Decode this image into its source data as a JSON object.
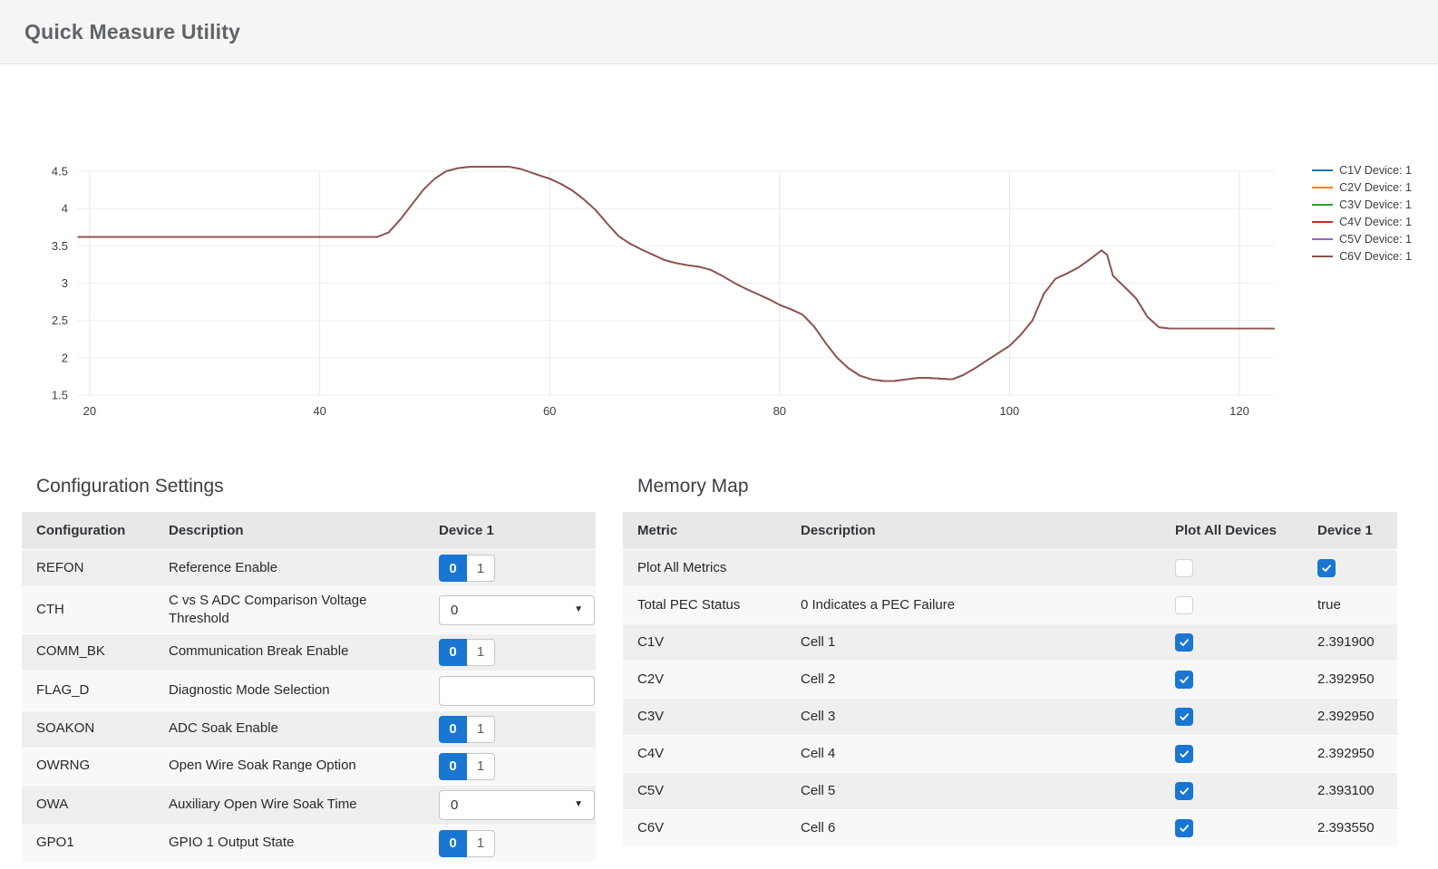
{
  "app": {
    "title": "Quick Measure Utility"
  },
  "colors": {
    "accent": "#1976d2",
    "header_bg": "#f5f5f5",
    "row_odd": "#efefef",
    "row_even": "#f8f8f8",
    "table_header_bg": "#e8e8e8"
  },
  "chart_data": {
    "type": "line",
    "title": "",
    "xlabel": "",
    "ylabel": "",
    "grid": true,
    "legend_position": "right",
    "x_ticks": [
      20,
      40,
      60,
      80,
      100,
      120
    ],
    "y_ticks": [
      1.5,
      2,
      2.5,
      3,
      3.5,
      4,
      4.5
    ],
    "x_range": [
      18.9,
      123.0
    ],
    "y_range": [
      1.5,
      4.5
    ],
    "all_series_identical": true,
    "note": "All six cell-voltage traces overlap exactly; only the last-drawn (C6V, brown) is visible.",
    "x": [
      19,
      45,
      46,
      47,
      48,
      49,
      50,
      51,
      52,
      53,
      56.5,
      57.5,
      59,
      60,
      61,
      62,
      63,
      64,
      65,
      66,
      67,
      68,
      69,
      70,
      71,
      72,
      73,
      74,
      75,
      76,
      77,
      78,
      79,
      80,
      81,
      82,
      83,
      84,
      85,
      86,
      87,
      88,
      89,
      90,
      91,
      92,
      93,
      94,
      95,
      96,
      97,
      98,
      99,
      100,
      101,
      102,
      103,
      104,
      105,
      106,
      107,
      108,
      108.5,
      109,
      110,
      111,
      112,
      113,
      114,
      123
    ],
    "y_shared": [
      3.62,
      3.62,
      3.68,
      3.85,
      4.05,
      4.25,
      4.4,
      4.5,
      4.54,
      4.56,
      4.56,
      4.53,
      4.45,
      4.4,
      4.33,
      4.24,
      4.12,
      3.98,
      3.8,
      3.63,
      3.53,
      3.45,
      3.38,
      3.31,
      3.27,
      3.24,
      3.22,
      3.18,
      3.1,
      3.01,
      2.93,
      2.86,
      2.79,
      2.71,
      2.65,
      2.58,
      2.42,
      2.2,
      2.0,
      1.86,
      1.76,
      1.71,
      1.69,
      1.69,
      1.71,
      1.73,
      1.73,
      1.72,
      1.71,
      1.77,
      1.86,
      1.96,
      2.06,
      2.16,
      2.31,
      2.5,
      2.86,
      3.06,
      3.13,
      3.21,
      3.32,
      3.44,
      3.38,
      3.1,
      2.95,
      2.8,
      2.55,
      2.41,
      2.39,
      2.39
    ],
    "series": [
      {
        "name": "C1V Device: 1",
        "color": "#1f77b4",
        "values_ref": "y_shared"
      },
      {
        "name": "C2V Device: 1",
        "color": "#ff7f0e",
        "values_ref": "y_shared"
      },
      {
        "name": "C3V Device: 1",
        "color": "#2ca02c",
        "values_ref": "y_shared"
      },
      {
        "name": "C4V Device: 1",
        "color": "#d62728",
        "values_ref": "y_shared"
      },
      {
        "name": "C5V Device: 1",
        "color": "#9467bd",
        "values_ref": "y_shared"
      },
      {
        "name": "C6V Device: 1",
        "color": "#8c564b",
        "values_ref": "y_shared"
      }
    ]
  },
  "config": {
    "heading": "Configuration Settings",
    "columns": [
      "Configuration",
      "Description",
      "Device 1"
    ],
    "rows": [
      {
        "name": "REFON",
        "desc": "Reference Enable",
        "control": {
          "type": "toggle",
          "options": [
            "0",
            "1"
          ],
          "selected": "0"
        }
      },
      {
        "name": "CTH",
        "desc": "C vs S ADC Comparison Voltage Threshold",
        "control": {
          "type": "select",
          "value": "0"
        }
      },
      {
        "name": "COMM_BK",
        "desc": "Communication Break Enable",
        "control": {
          "type": "toggle",
          "options": [
            "0",
            "1"
          ],
          "selected": "0"
        }
      },
      {
        "name": "FLAG_D",
        "desc": "Diagnostic Mode Selection",
        "control": {
          "type": "input",
          "value": ""
        }
      },
      {
        "name": "SOAKON",
        "desc": "ADC Soak Enable",
        "control": {
          "type": "toggle",
          "options": [
            "0",
            "1"
          ],
          "selected": "0"
        }
      },
      {
        "name": "OWRNG",
        "desc": "Open Wire Soak Range Option",
        "control": {
          "type": "toggle",
          "options": [
            "0",
            "1"
          ],
          "selected": "0"
        }
      },
      {
        "name": "OWA",
        "desc": "Auxiliary Open Wire Soak Time",
        "control": {
          "type": "select",
          "value": "0"
        }
      },
      {
        "name": "GPO1",
        "desc": "GPIO 1 Output State",
        "control": {
          "type": "toggle",
          "options": [
            "0",
            "1"
          ],
          "selected": "0"
        }
      }
    ]
  },
  "memory": {
    "heading": "Memory Map",
    "columns": [
      "Metric",
      "Description",
      "Plot All Devices",
      "Device 1"
    ],
    "rows": [
      {
        "metric": "Plot All Metrics",
        "desc": "",
        "plot_all": {
          "type": "checkbox",
          "checked": false
        },
        "device": {
          "type": "checkbox",
          "checked": true
        }
      },
      {
        "metric": "Total PEC Status",
        "desc": "0 Indicates a PEC Failure",
        "plot_all": {
          "type": "checkbox",
          "checked": false
        },
        "device": {
          "type": "text",
          "value": "true"
        }
      },
      {
        "metric": "C1V",
        "desc": "Cell 1",
        "plot_all": {
          "type": "checkbox",
          "checked": true
        },
        "device": {
          "type": "text",
          "value": "2.391900"
        }
      },
      {
        "metric": "C2V",
        "desc": "Cell 2",
        "plot_all": {
          "type": "checkbox",
          "checked": true
        },
        "device": {
          "type": "text",
          "value": "2.392950"
        }
      },
      {
        "metric": "C3V",
        "desc": "Cell 3",
        "plot_all": {
          "type": "checkbox",
          "checked": true
        },
        "device": {
          "type": "text",
          "value": "2.392950"
        }
      },
      {
        "metric": "C4V",
        "desc": "Cell 4",
        "plot_all": {
          "type": "checkbox",
          "checked": true
        },
        "device": {
          "type": "text",
          "value": "2.392950"
        }
      },
      {
        "metric": "C5V",
        "desc": "Cell 5",
        "plot_all": {
          "type": "checkbox",
          "checked": true
        },
        "device": {
          "type": "text",
          "value": "2.393100"
        }
      },
      {
        "metric": "C6V",
        "desc": "Cell 6",
        "plot_all": {
          "type": "checkbox",
          "checked": true
        },
        "device": {
          "type": "text",
          "value": "2.393550"
        }
      }
    ]
  },
  "icons": {
    "chevron_down": "▼",
    "check": "check-mark"
  }
}
